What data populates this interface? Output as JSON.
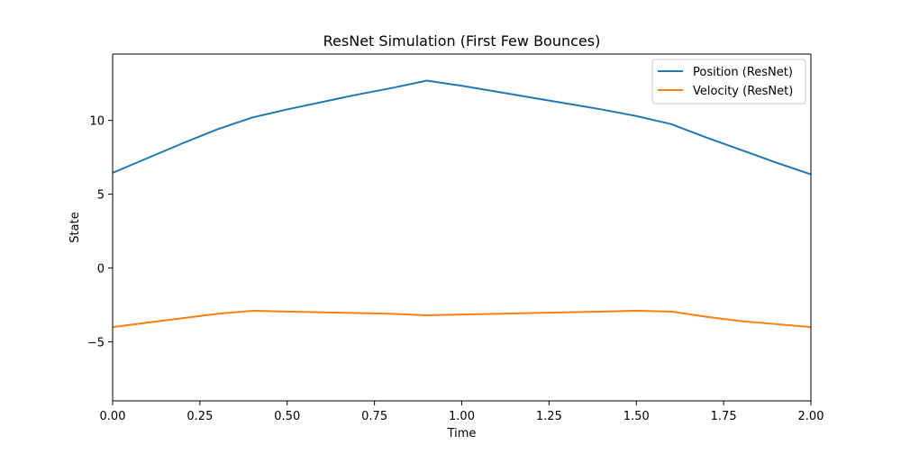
{
  "chart_data": {
    "type": "line",
    "title": "ResNet Simulation (First Few Bounces)",
    "xlabel": "Time",
    "ylabel": "State",
    "xlim": [
      0.0,
      2.0
    ],
    "ylim": [
      -9.0,
      14.5
    ],
    "xticks": [
      0.0,
      0.25,
      0.5,
      0.75,
      1.0,
      1.25,
      1.5,
      1.75,
      2.0
    ],
    "xtick_labels": [
      "0.00",
      "0.25",
      "0.50",
      "0.75",
      "1.00",
      "1.25",
      "1.50",
      "1.75",
      "2.00"
    ],
    "yticks": [
      -5,
      0,
      5,
      10
    ],
    "ytick_labels": [
      "−5",
      "0",
      "5",
      "10"
    ],
    "grid": false,
    "legend_position": "top-right",
    "series": [
      {
        "name": "Position (ResNet)",
        "color": "#1f77b4",
        "x": [
          0.0,
          0.1,
          0.2,
          0.3,
          0.4,
          0.5,
          0.6,
          0.7,
          0.8,
          0.9,
          1.0,
          1.1,
          1.2,
          1.3,
          1.4,
          1.5,
          1.6,
          1.7,
          1.8,
          1.9,
          2.0
        ],
        "y": [
          6.45,
          7.45,
          8.45,
          9.4,
          10.2,
          10.75,
          11.25,
          11.75,
          12.2,
          12.7,
          12.35,
          11.95,
          11.55,
          11.15,
          10.75,
          10.3,
          9.75,
          8.85,
          8.0,
          7.15,
          6.35
        ]
      },
      {
        "name": "Velocity (ResNet)",
        "color": "#ff7f0e",
        "x": [
          0.0,
          0.1,
          0.2,
          0.3,
          0.4,
          0.5,
          0.6,
          0.7,
          0.8,
          0.9,
          1.0,
          1.1,
          1.2,
          1.3,
          1.4,
          1.5,
          1.6,
          1.7,
          1.8,
          1.9,
          2.0
        ],
        "y": [
          -4.0,
          -3.7,
          -3.4,
          -3.1,
          -2.9,
          -2.95,
          -3.0,
          -3.05,
          -3.1,
          -3.2,
          -3.15,
          -3.1,
          -3.05,
          -3.0,
          -2.95,
          -2.9,
          -2.95,
          -3.3,
          -3.6,
          -3.8,
          -4.0
        ]
      }
    ]
  }
}
